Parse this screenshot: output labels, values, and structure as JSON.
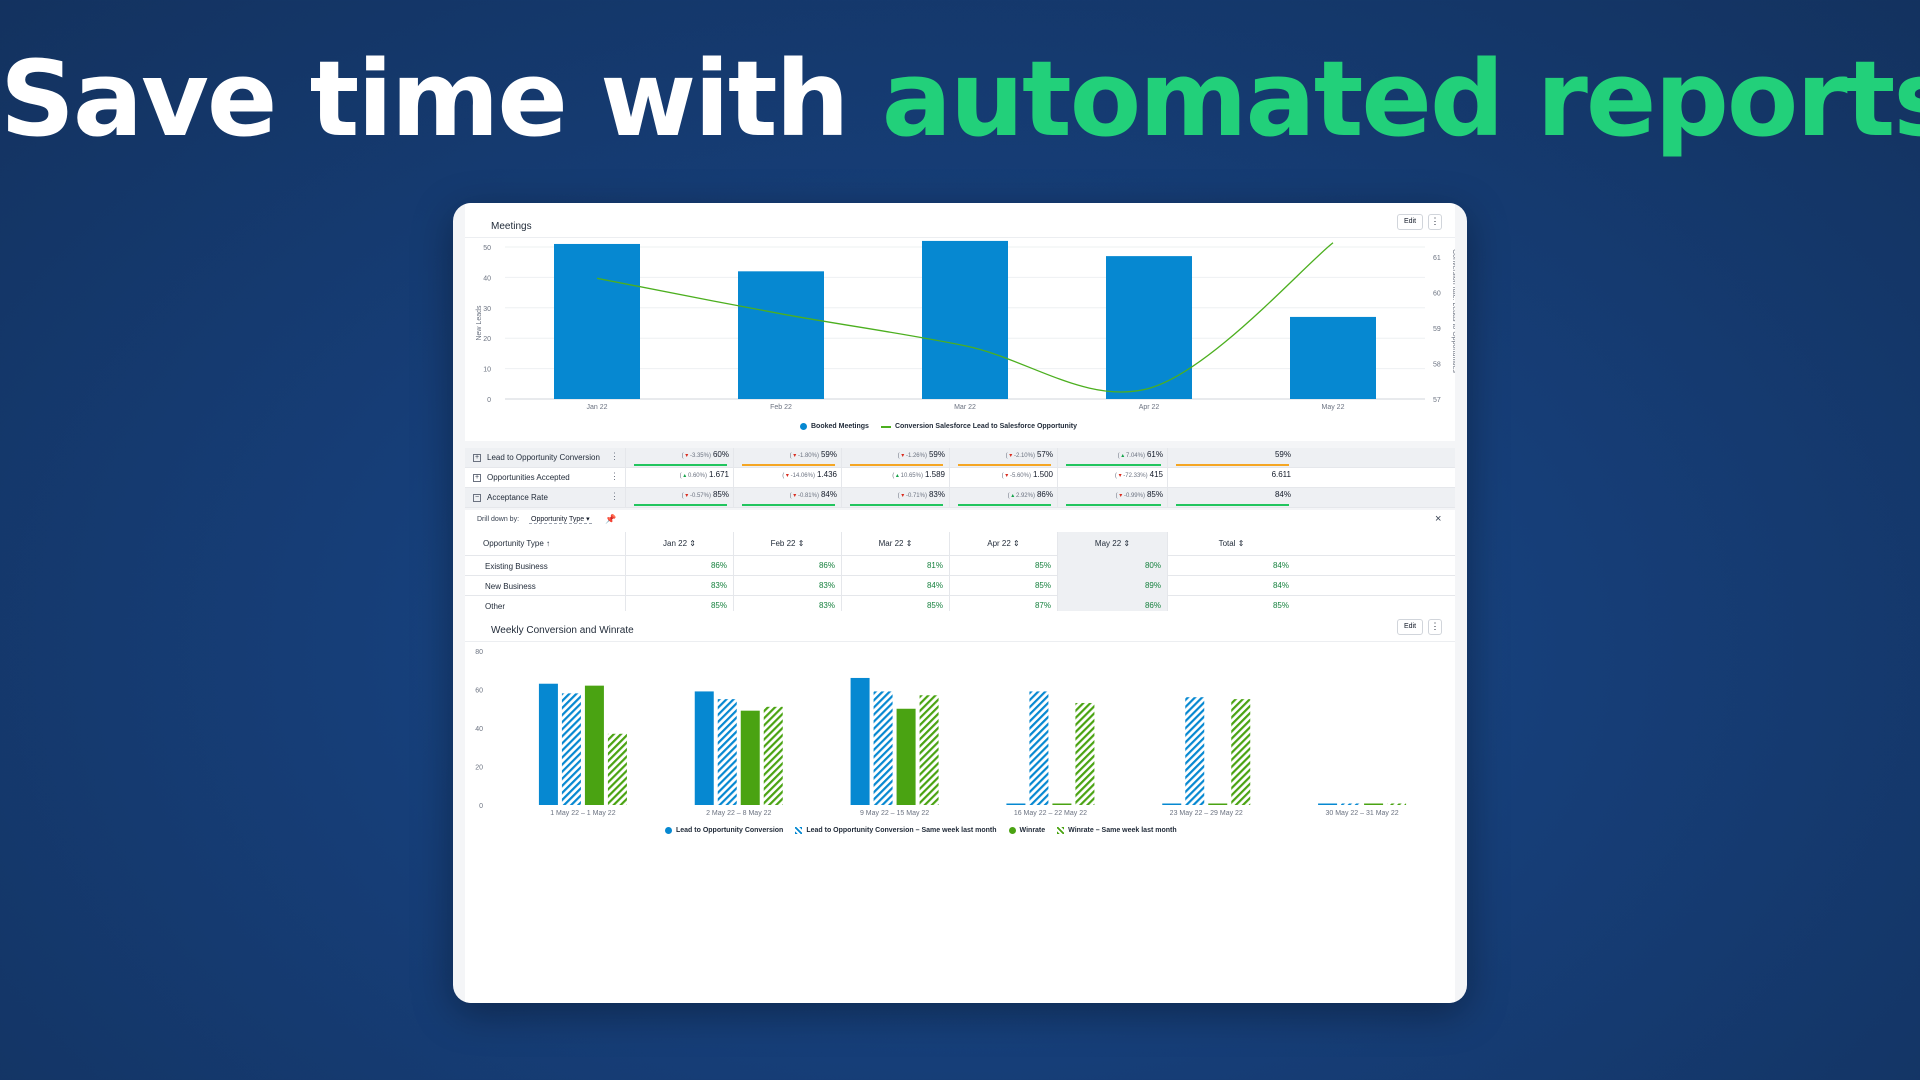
{
  "headline": {
    "part1": "Save time with ",
    "part2": "automated reports"
  },
  "colors": {
    "accent_green": "#22d07a",
    "bar_blue": "#0688d1",
    "line_green": "#4caf1f",
    "winrate_green": "#4aa312",
    "orange": "#f5a623"
  },
  "meetings": {
    "title": "Meetings",
    "edit_label": "Edit",
    "more_label": "⋮",
    "chart_data": {
      "type": "bar",
      "categories": [
        "Jan 22",
        "Feb 22",
        "Mar 22",
        "Apr 22",
        "May 22"
      ],
      "series": [
        {
          "name": "Booked Meetings",
          "values": [
            51,
            42,
            52,
            47,
            27
          ],
          "axis": "left"
        },
        {
          "name": "Conversion Salesforce Lead to Salesforce Opportunity",
          "type": "line",
          "values": [
            60.4,
            59.4,
            58.5,
            57.3,
            61.4
          ],
          "axis": "right"
        }
      ],
      "ylabel": "New Leads",
      "ylabel_right": "Conversion rate: Leads to Opportunities",
      "ylim": [
        0,
        50
      ],
      "yticks": [
        "0",
        "10",
        "20",
        "30",
        "40",
        "50"
      ],
      "ylim_right": [
        57,
        61
      ],
      "yticks_right": [
        "57",
        "58",
        "59",
        "60",
        "61"
      ],
      "legend_position": "bottom"
    }
  },
  "table": {
    "rows": [
      {
        "label": "Lead to Opportunity Conversion",
        "expander": "+",
        "kebab": "⋮",
        "cells": [
          {
            "delta": "-3.35%",
            "dir": "down",
            "value": "60%",
            "bar": "green"
          },
          {
            "delta": "-1.80%",
            "dir": "down",
            "value": "59%",
            "bar": "orange"
          },
          {
            "delta": "-1.26%",
            "dir": "down",
            "value": "59%",
            "bar": "orange"
          },
          {
            "delta": "-2.10%",
            "dir": "down",
            "value": "57%",
            "bar": "orange"
          },
          {
            "delta": "7.04%",
            "dir": "up",
            "value": "61%",
            "bar": "green"
          },
          {
            "delta": "",
            "dir": "",
            "value": "59%",
            "bar": "orange"
          }
        ]
      },
      {
        "label": "Opportunities Accepted",
        "expander": "+",
        "kebab": "⋮",
        "cells": [
          {
            "delta": "0.60%",
            "dir": "up",
            "value": "1.671",
            "bar": ""
          },
          {
            "delta": "-14.06%",
            "dir": "down",
            "value": "1.436",
            "bar": ""
          },
          {
            "delta": "10.65%",
            "dir": "up",
            "value": "1.589",
            "bar": ""
          },
          {
            "delta": "-5.60%",
            "dir": "down",
            "value": "1.500",
            "bar": ""
          },
          {
            "delta": "-72.33%",
            "dir": "down",
            "value": "415",
            "bar": ""
          },
          {
            "delta": "",
            "dir": "",
            "value": "6.611",
            "bar": ""
          }
        ]
      },
      {
        "label": "Acceptance Rate",
        "expander": "−",
        "kebab": "⋮",
        "cells": [
          {
            "delta": "-0.57%",
            "dir": "down",
            "value": "85%",
            "bar": "green"
          },
          {
            "delta": "-0.81%",
            "dir": "down",
            "value": "84%",
            "bar": "green"
          },
          {
            "delta": "-0.71%",
            "dir": "down",
            "value": "83%",
            "bar": "green"
          },
          {
            "delta": "2.92%",
            "dir": "up",
            "value": "86%",
            "bar": "green"
          },
          {
            "delta": "-0.99%",
            "dir": "down",
            "value": "85%",
            "bar": "green"
          },
          {
            "delta": "",
            "dir": "",
            "value": "84%",
            "bar": "green"
          }
        ]
      }
    ],
    "drill": {
      "label": "Drill down by:",
      "value": "Opportunity Type",
      "close": "×"
    },
    "subheader": [
      "Opportunity Type ↑",
      "Jan 22 ⇕",
      "Feb 22 ⇕",
      "Mar 22 ⇕",
      "Apr 22 ⇕",
      "May 22 ⇕",
      "Total ⇕"
    ],
    "subrows": [
      {
        "label": "Existing Business",
        "values": [
          "86%",
          "86%",
          "81%",
          "85%",
          "80%",
          "84%"
        ]
      },
      {
        "label": "New Business",
        "values": [
          "83%",
          "83%",
          "84%",
          "85%",
          "89%",
          "84%"
        ]
      },
      {
        "label": "Other",
        "values": [
          "85%",
          "83%",
          "85%",
          "87%",
          "86%",
          "85%"
        ]
      }
    ]
  },
  "weekly": {
    "title": "Weekly Conversion and Winrate",
    "edit_label": "Edit",
    "more_label": "⋮",
    "chart_data": {
      "type": "bar",
      "categories": [
        "1 May 22 – 1 May 22",
        "2 May 22 – 8 May 22",
        "9 May 22 – 15 May 22",
        "16 May 22 – 22 May 22",
        "23 May 22 – 29 May 22",
        "30 May 22 – 31 May 22"
      ],
      "series": [
        {
          "name": "Lead to Opportunity Conversion",
          "values": [
            63,
            59,
            66,
            0,
            0,
            0
          ],
          "style": "solid-blue"
        },
        {
          "name": "Lead to Opportunity Conversion – Same week last month",
          "values": [
            58,
            55,
            59,
            59,
            56,
            0
          ],
          "style": "hatch-blue"
        },
        {
          "name": "Winrate",
          "values": [
            62,
            49,
            50,
            0,
            0,
            0
          ],
          "style": "solid-green"
        },
        {
          "name": "Winrate – Same week last month",
          "values": [
            37,
            51,
            57,
            53,
            55,
            0
          ],
          "style": "hatch-green"
        }
      ],
      "ylim": [
        0,
        80
      ],
      "yticks": [
        "0",
        "20",
        "40",
        "60",
        "80"
      ],
      "legend_position": "bottom"
    }
  }
}
